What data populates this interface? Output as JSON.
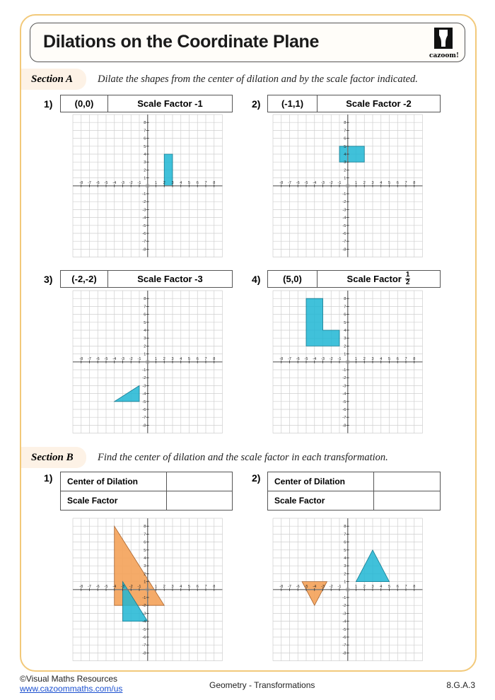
{
  "header": {
    "title": "Dilations on the Coordinate Plane",
    "logo_text": "cazoom!"
  },
  "colors": {
    "frame": "#f2c97a",
    "section_tab": "#fdf2e6",
    "shape_blue": "#1fb6d4",
    "shape_orange": "#f4a259",
    "grid": "#cfcfcf",
    "axis": "#777777"
  },
  "axis": {
    "range": [
      -8,
      8
    ]
  },
  "section_a": {
    "name": "Section A",
    "instruction": "Dilate the shapes from the center of dilation and by the scale factor indicated.",
    "questions": [
      {
        "number": "1)",
        "center": "(0,0)",
        "scale_label": "Scale Factor -1",
        "shapes": [
          {
            "color": "blue",
            "points": [
              [
                2,
                0
              ],
              [
                3,
                0
              ],
              [
                3,
                4
              ],
              [
                2,
                4
              ]
            ]
          }
        ]
      },
      {
        "number": "2)",
        "center": "(-1,1)",
        "scale_label": "Scale Factor -2",
        "shapes": [
          {
            "color": "blue",
            "points": [
              [
                -1,
                3
              ],
              [
                2,
                3
              ],
              [
                2,
                5
              ],
              [
                -1,
                5
              ]
            ]
          }
        ]
      },
      {
        "number": "3)",
        "center": "(-2,-2)",
        "scale_label": "Scale Factor -3",
        "shapes": [
          {
            "color": "blue",
            "points": [
              [
                -4,
                -5
              ],
              [
                -1,
                -5
              ],
              [
                -1,
                -3
              ]
            ]
          }
        ]
      },
      {
        "number": "4)",
        "center": "(5,0)",
        "scale_label": "Scale Factor",
        "scale_num": "1",
        "scale_den": "2",
        "shapes": [
          {
            "color": "blue",
            "points": [
              [
                -5,
                8
              ],
              [
                -3,
                8
              ],
              [
                -3,
                4
              ],
              [
                -1,
                4
              ],
              [
                -1,
                2
              ],
              [
                -5,
                2
              ]
            ]
          }
        ]
      }
    ]
  },
  "section_b": {
    "name": "Section B",
    "instruction": "Find the center of dilation and the scale factor in each transformation.",
    "center_label": "Center of Dilation",
    "scale_label": "Scale Factor",
    "questions": [
      {
        "number": "1)",
        "center_value": "",
        "scale_value": "",
        "shapes": [
          {
            "color": "orange",
            "points": [
              [
                -4,
                8
              ],
              [
                -4,
                -2
              ],
              [
                2,
                -2
              ]
            ]
          },
          {
            "color": "blue",
            "points": [
              [
                -3,
                1
              ],
              [
                -3,
                -4
              ],
              [
                0,
                -4
              ]
            ]
          }
        ]
      },
      {
        "number": "2)",
        "center_value": "",
        "scale_value": "",
        "shapes": [
          {
            "color": "orange",
            "points": [
              [
                -5.5,
                1
              ],
              [
                -2.5,
                1
              ],
              [
                -4,
                -2
              ]
            ]
          },
          {
            "color": "blue",
            "points": [
              [
                1,
                1
              ],
              [
                3,
                5
              ],
              [
                5,
                1
              ]
            ]
          }
        ]
      }
    ]
  },
  "footer": {
    "copyright": "©Visual Maths Resources",
    "url": "www.cazoommaths.com/us",
    "topic": "Geometry - Transformations",
    "code": "8.G.A.3"
  }
}
